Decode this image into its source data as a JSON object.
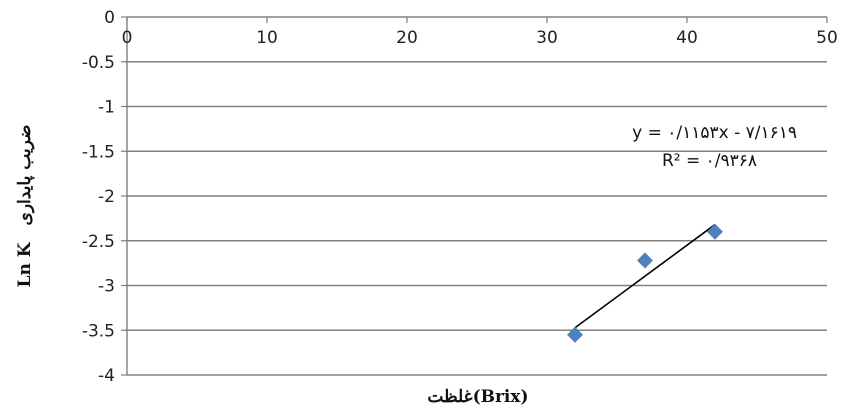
{
  "chart_data": {
    "type": "scatter",
    "x_ticks": [
      "0",
      "10",
      "20",
      "30",
      "40",
      "50"
    ],
    "y_ticks": [
      "0",
      "-0.5",
      "-1",
      "-1.5",
      "-2",
      "-2.5",
      "-3",
      "-3.5",
      "-4"
    ],
    "xlim": [
      0,
      50
    ],
    "ylim": [
      -4,
      0
    ],
    "x_axis_position": "top",
    "grid": "horizontal",
    "xlabel": "غلظت(Brix)",
    "ylabel_main": "Ln K",
    "ylabel_sub": "ضریب پایداری",
    "points": [
      {
        "x": 32,
        "y": -3.55
      },
      {
        "x": 37,
        "y": -2.72
      },
      {
        "x": 42,
        "y": -2.4
      }
    ],
    "trendline": {
      "x_range": [
        32,
        42
      ],
      "slope": 0.1153,
      "intercept": -7.1619
    },
    "equation_text": "y = ۰/۱۱۵۳x - ۷/۱۶۱۹",
    "r2_text": "R² = ۰/۹۳۶۸",
    "colors": {
      "marker": "#4f81bd",
      "trendline": "#000000",
      "grid": "#808080",
      "axis": "#808080"
    }
  }
}
